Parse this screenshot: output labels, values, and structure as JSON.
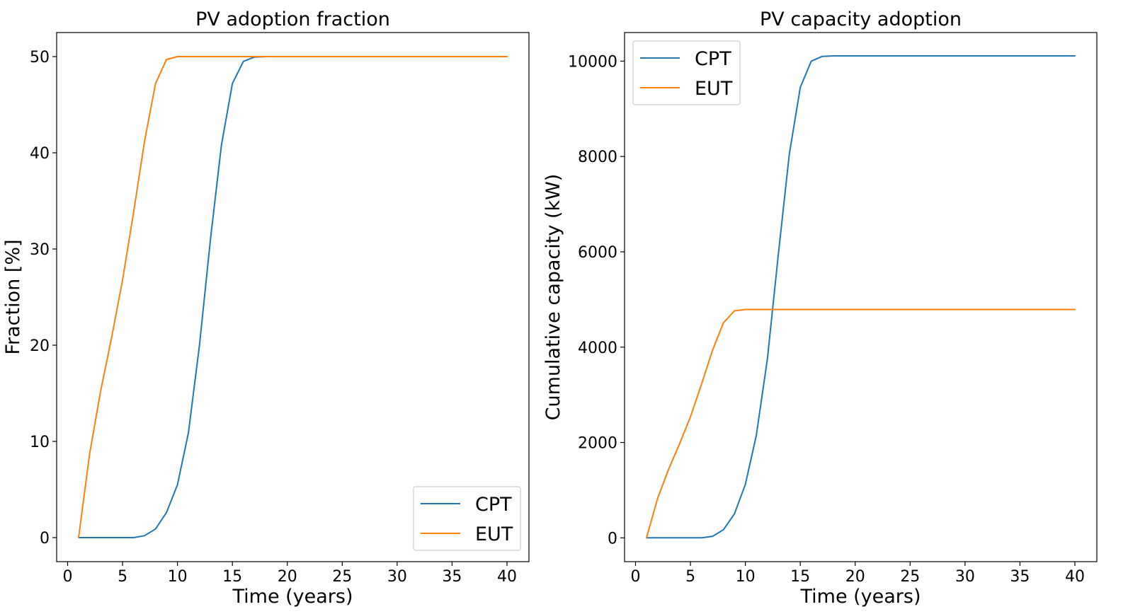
{
  "chart_data": [
    {
      "type": "line",
      "title": "PV adoption fraction",
      "xlabel": "Time (years)",
      "ylabel": "Fraction [%]",
      "xlim": [
        -1,
        42
      ],
      "ylim": [
        -2.5,
        52.5
      ],
      "xticks": [
        0,
        5,
        10,
        15,
        20,
        25,
        30,
        35,
        40
      ],
      "yticks": [
        0,
        10,
        20,
        30,
        40,
        50
      ],
      "legend_position": "lower-right",
      "grid": false,
      "x": [
        1,
        2,
        3,
        4,
        5,
        6,
        7,
        8,
        9,
        10,
        11,
        12,
        13,
        14,
        15,
        16,
        17,
        18,
        19,
        20,
        21,
        22,
        23,
        24,
        25,
        26,
        27,
        28,
        29,
        30,
        31,
        32,
        33,
        34,
        35,
        36,
        37,
        38,
        39,
        40
      ],
      "series": [
        {
          "name": "CPT",
          "color": "#1f77b4",
          "values": [
            0,
            0,
            0,
            0,
            0,
            0,
            0.2,
            0.9,
            2.6,
            5.5,
            10.9,
            20,
            31,
            40.8,
            47.2,
            49.5,
            49.95,
            50,
            50,
            50,
            50,
            50,
            50,
            50,
            50,
            50,
            50,
            50,
            50,
            50,
            50,
            50,
            50,
            50,
            50,
            50,
            50,
            50,
            50,
            50
          ]
        },
        {
          "name": "EUT",
          "color": "#ff7f0e",
          "values": [
            0,
            8.7,
            15.2,
            20.8,
            26.8,
            33.8,
            41.2,
            47.2,
            49.7,
            50,
            50,
            50,
            50,
            50,
            50,
            50,
            50,
            50,
            50,
            50,
            50,
            50,
            50,
            50,
            50,
            50,
            50,
            50,
            50,
            50,
            50,
            50,
            50,
            50,
            50,
            50,
            50,
            50,
            50,
            50
          ]
        }
      ]
    },
    {
      "type": "line",
      "title": "PV capacity adoption",
      "xlabel": "Time (years)",
      "ylabel": "Cumulative capacity (kW)",
      "xlim": [
        -1,
        42
      ],
      "ylim": [
        -500,
        10600
      ],
      "xticks": [
        0,
        5,
        10,
        15,
        20,
        25,
        30,
        35,
        40
      ],
      "yticks": [
        0,
        2000,
        4000,
        6000,
        8000,
        10000
      ],
      "legend_position": "upper-left",
      "grid": false,
      "x": [
        1,
        2,
        3,
        4,
        5,
        6,
        7,
        8,
        9,
        10,
        11,
        12,
        13,
        14,
        15,
        16,
        17,
        18,
        19,
        20,
        21,
        22,
        23,
        24,
        25,
        26,
        27,
        28,
        29,
        30,
        31,
        32,
        33,
        34,
        35,
        36,
        37,
        38,
        39,
        40
      ],
      "series": [
        {
          "name": "CPT",
          "color": "#1f77b4",
          "values": [
            0,
            0,
            0,
            0,
            0,
            0,
            30,
            170,
            500,
            1120,
            2150,
            3750,
            5950,
            8050,
            9450,
            10000,
            10100,
            10110,
            10110,
            10110,
            10110,
            10110,
            10110,
            10110,
            10110,
            10110,
            10110,
            10110,
            10110,
            10110,
            10110,
            10110,
            10110,
            10110,
            10110,
            10110,
            10110,
            10110,
            10110,
            10110
          ]
        },
        {
          "name": "EUT",
          "color": "#ff7f0e",
          "values": [
            0,
            820,
            1430,
            1970,
            2540,
            3220,
            3930,
            4510,
            4760,
            4790,
            4790,
            4790,
            4790,
            4790,
            4790,
            4790,
            4790,
            4790,
            4790,
            4790,
            4790,
            4790,
            4790,
            4790,
            4790,
            4790,
            4790,
            4790,
            4790,
            4790,
            4790,
            4790,
            4790,
            4790,
            4790,
            4790,
            4790,
            4790,
            4790,
            4790
          ]
        }
      ]
    }
  ]
}
